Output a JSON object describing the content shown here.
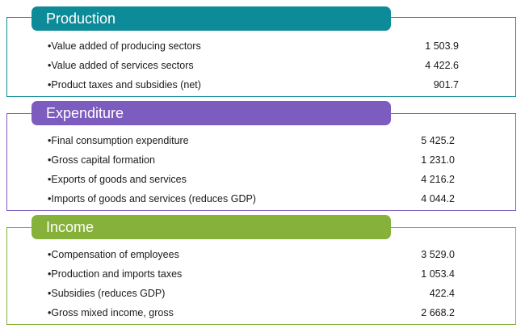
{
  "colors": {
    "production": "#0e8b98",
    "expenditure": "#7d5cbf",
    "income": "#86b13a"
  },
  "sections": [
    {
      "title": "Production",
      "rows": [
        {
          "label": "Value added of producing sectors",
          "value": "1 503.9"
        },
        {
          "label": "Value added of services sectors",
          "value": "4 422.6"
        },
        {
          "label": "Product taxes and subsidies (net)",
          "value": "901.7"
        }
      ]
    },
    {
      "title": "Expenditure",
      "rows": [
        {
          "label": "Final consumption expenditure",
          "value": "5 425.2"
        },
        {
          "label": "Gross capital formation",
          "value": "1 231.0"
        },
        {
          "label": "Exports of goods and services",
          "value": "4 216.2"
        },
        {
          "label": "Imports of goods and services (reduces GDP)",
          "value": "4 044.2"
        }
      ]
    },
    {
      "title": "Income",
      "rows": [
        {
          "label": "Compensation of employees",
          "value": "3 529.0"
        },
        {
          "label": "Production and imports taxes",
          "value": "1 053.4"
        },
        {
          "label": "Subsidies (reduces GDP)",
          "value": "422.4"
        },
        {
          "label": "Gross mixed income, gross",
          "value": "2 668.2"
        }
      ]
    }
  ]
}
